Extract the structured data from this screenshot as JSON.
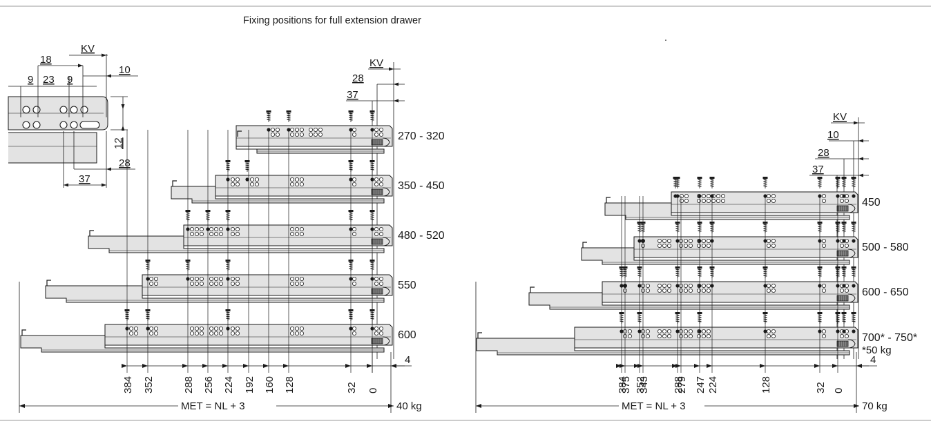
{
  "title": "Fixing positions for full extension drawer",
  "dot_mark": ".",
  "colors": {
    "rail_fill": "#e3e3e3",
    "line": "#1a1a1a",
    "frame": "#9a9a9a",
    "background": "#ffffff"
  },
  "detail": {
    "labels": {
      "kv": "KV",
      "d18": "18",
      "d10": "10",
      "d9a": "9",
      "d23": "23",
      "d9b": "9",
      "d12": "12",
      "d28": "28",
      "d37": "37"
    }
  },
  "left": {
    "top_labels": {
      "kv": "KV",
      "d28": "28",
      "d37": "37"
    },
    "rails": [
      {
        "range": "270 - 320"
      },
      {
        "range": "350 - 450"
      },
      {
        "range": "480 - 520"
      },
      {
        "range": "550"
      },
      {
        "range": "600"
      }
    ],
    "positions": [
      "384",
      "352",
      "288",
      "256",
      "224",
      "192",
      "160",
      "128",
      "32",
      "0"
    ],
    "offset_label": "4",
    "met_label": "MET = NL + 3",
    "load": "40 kg"
  },
  "right": {
    "top_labels": {
      "kv": "KV",
      "d10": "10",
      "d28": "28",
      "d37": "37"
    },
    "rails": [
      {
        "range": "450"
      },
      {
        "range": "500 - 580"
      },
      {
        "range": "600 - 650"
      },
      {
        "range": "700* - 750*",
        "note": "*50 kg"
      }
    ],
    "positions": [
      "384",
      "375",
      "352",
      "343",
      "288",
      "279",
      "247",
      "224",
      "128",
      "32",
      "0"
    ],
    "offset_label": "4",
    "met_label": "MET = NL + 3",
    "load": "70 kg"
  }
}
